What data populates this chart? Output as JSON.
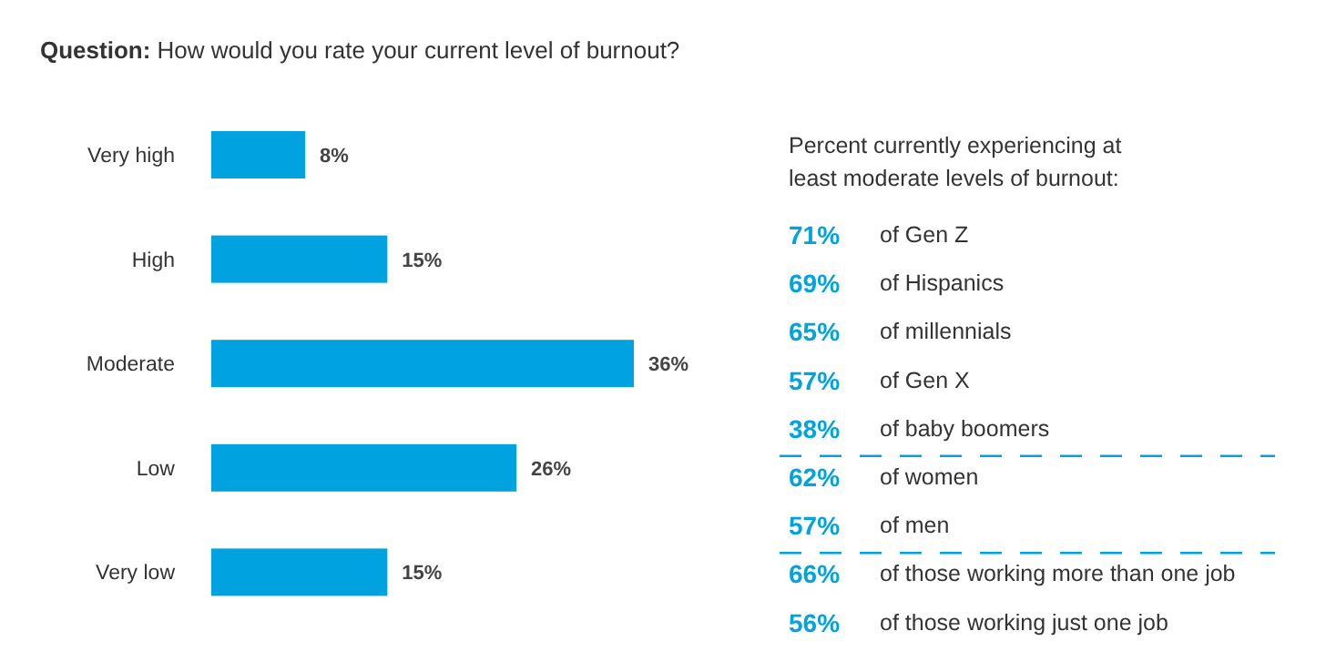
{
  "chart_data": [
    {
      "type": "bar",
      "orientation": "horizontal",
      "relative": false,
      "title": "Question: How would you rate your current level of burnout?",
      "categories": [
        "Very high",
        "High",
        "Moderate",
        "Low",
        "Very low"
      ],
      "values": [
        8,
        15,
        36,
        26,
        15
      ],
      "value_labels": [
        "8%",
        "15%",
        "36%",
        "26%",
        "15%"
      ],
      "color": "#00a3e0"
    },
    {
      "type": "other",
      "title": "Percent currently experiencing at least moderate levels of burnout:",
      "categories": [
        "of Gen Z",
        "of Hispanics",
        "of millennials",
        "of Gen X",
        "of baby boomers",
        "of women",
        "of men",
        "of those working more than one job",
        "of those working just one job"
      ],
      "values": [
        71,
        69,
        65,
        57,
        38,
        62,
        57,
        66,
        56
      ],
      "value_labels": [
        "71%",
        "69%",
        "65%",
        "57%",
        "38%",
        "62%",
        "57%",
        "66%",
        "56%"
      ],
      "color": "#00a3e0"
    }
  ]
}
